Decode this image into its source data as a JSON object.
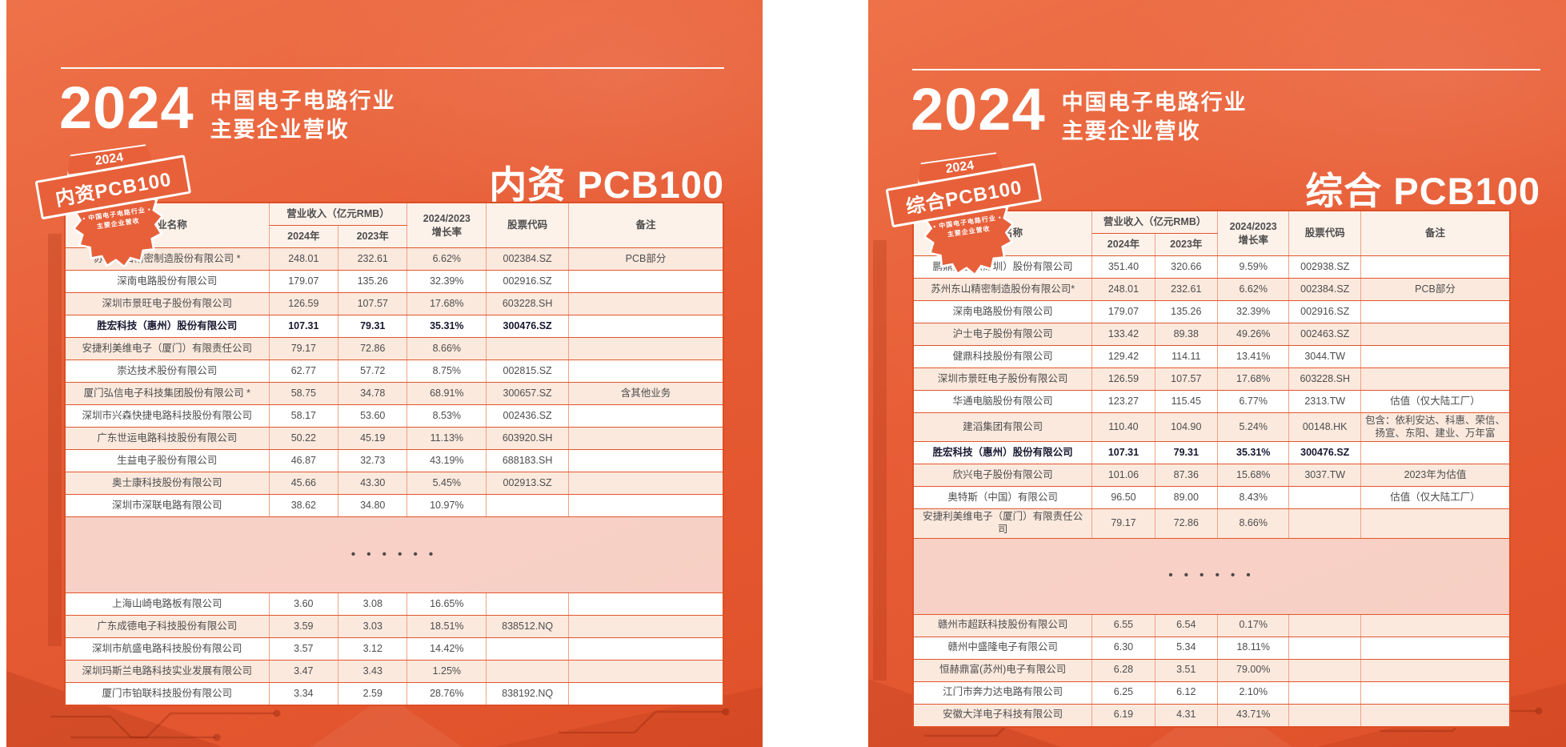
{
  "page": {
    "title_year": "2024",
    "title_line1": "中国电子电路行业",
    "title_line2": "主要企业营收"
  },
  "colors": {
    "background_orange": "#e75d36",
    "table_border": "#dd4f24",
    "row_peach": "#fbe9de",
    "highlight_text": "#17172f"
  },
  "panels": [
    {
      "heading": "内资 PCB100",
      "badge": {
        "year": "2024",
        "label": "内资PCB100",
        "sub1": "• 中国电子电路行业 •",
        "sub2": "主要企业营收"
      },
      "table": {
        "col_company": "企业名称",
        "col_revenue_group": "营业收入（亿元RMB）",
        "col_2024": "2024年",
        "col_2023": "2023年",
        "col_growth_l1": "2024/2023",
        "col_growth_l2": "增长率",
        "col_code": "股票代码",
        "col_note": "备注",
        "ellipsis": "• • •  • • •",
        "rows_top": [
          {
            "company": "苏州东山精密制造股份有限公司 *",
            "r2024": "248.01",
            "r2023": "232.61",
            "growth": "6.62%",
            "code": "002384.SZ",
            "note": "PCB部分"
          },
          {
            "company": "深南电路股份有限公司",
            "r2024": "179.07",
            "r2023": "135.26",
            "growth": "32.39%",
            "code": "002916.SZ",
            "note": ""
          },
          {
            "company": "深圳市景旺电子股份有限公司",
            "r2024": "126.59",
            "r2023": "107.57",
            "growth": "17.68%",
            "code": "603228.SH",
            "note": ""
          },
          {
            "company": "胜宏科技（惠州）股份有限公司",
            "r2024": "107.31",
            "r2023": "79.31",
            "growth": "35.31%",
            "code": "300476.SZ",
            "note": "",
            "bold": true
          },
          {
            "company": "安捷利美维电子（厦门）有限责任公司",
            "r2024": "79.17",
            "r2023": "72.86",
            "growth": "8.66%",
            "code": "",
            "note": ""
          },
          {
            "company": "崇达技术股份有限公司",
            "r2024": "62.77",
            "r2023": "57.72",
            "growth": "8.75%",
            "code": "002815.SZ",
            "note": ""
          },
          {
            "company": "厦门弘信电子科技集团股份有限公司 *",
            "r2024": "58.75",
            "r2023": "34.78",
            "growth": "68.91%",
            "code": "300657.SZ",
            "note": "含其他业务"
          },
          {
            "company": "深圳市兴森快捷电路科技股份有限公司",
            "r2024": "58.17",
            "r2023": "53.60",
            "growth": "8.53%",
            "code": "002436.SZ",
            "note": ""
          },
          {
            "company": "广东世运电路科技股份有限公司",
            "r2024": "50.22",
            "r2023": "45.19",
            "growth": "11.13%",
            "code": "603920.SH",
            "note": ""
          },
          {
            "company": "生益电子股份有限公司",
            "r2024": "46.87",
            "r2023": "32.73",
            "growth": "43.19%",
            "code": "688183.SH",
            "note": ""
          },
          {
            "company": "奥士康科技股份有限公司",
            "r2024": "45.66",
            "r2023": "43.30",
            "growth": "5.45%",
            "code": "002913.SZ",
            "note": ""
          },
          {
            "company": "深圳市深联电路有限公司",
            "r2024": "38.62",
            "r2023": "34.80",
            "growth": "10.97%",
            "code": "",
            "note": ""
          }
        ],
        "rows_bottom": [
          {
            "company": "上海山崎电路板有限公司",
            "r2024": "3.60",
            "r2023": "3.08",
            "growth": "16.65%",
            "code": "",
            "note": ""
          },
          {
            "company": "广东成德电子科技股份有限公司",
            "r2024": "3.59",
            "r2023": "3.03",
            "growth": "18.51%",
            "code": "838512.NQ",
            "note": ""
          },
          {
            "company": "深圳市航盛电路科技股份有限公司",
            "r2024": "3.57",
            "r2023": "3.12",
            "growth": "14.42%",
            "code": "",
            "note": ""
          },
          {
            "company": "深圳玛斯兰电路科技实业发展有限公司",
            "r2024": "3.47",
            "r2023": "3.43",
            "growth": "1.25%",
            "code": "",
            "note": ""
          },
          {
            "company": "厦门市铂联科技股份有限公司",
            "r2024": "3.34",
            "r2023": "2.59",
            "growth": "28.76%",
            "code": "838192.NQ",
            "note": ""
          }
        ]
      }
    },
    {
      "heading": "综合 PCB100",
      "badge": {
        "year": "2024",
        "label": "综合PCB100",
        "sub1": "• 中国电子电路行业 •",
        "sub2": "主要企业营收"
      },
      "table": {
        "col_company": "企业名称",
        "col_revenue_group": "营业收入（亿元RMB）",
        "col_2024": "2024年",
        "col_2023": "2023年",
        "col_growth_l1": "2024/2023",
        "col_growth_l2": "增长率",
        "col_code": "股票代码",
        "col_note": "备注",
        "ellipsis": "• • •  • • •",
        "rows_top": [
          {
            "company": "鹏鼎控股（深圳）股份有限公司",
            "r2024": "351.40",
            "r2023": "320.66",
            "growth": "9.59%",
            "code": "002938.SZ",
            "note": ""
          },
          {
            "company": "苏州东山精密制造股份有限公司*",
            "r2024": "248.01",
            "r2023": "232.61",
            "growth": "6.62%",
            "code": "002384.SZ",
            "note": "PCB部分"
          },
          {
            "company": "深南电路股份有限公司",
            "r2024": "179.07",
            "r2023": "135.26",
            "growth": "32.39%",
            "code": "002916.SZ",
            "note": ""
          },
          {
            "company": "沪士电子股份有限公司",
            "r2024": "133.42",
            "r2023": "89.38",
            "growth": "49.26%",
            "code": "002463.SZ",
            "note": ""
          },
          {
            "company": "健鼎科技股份有限公司",
            "r2024": "129.42",
            "r2023": "114.11",
            "growth": "13.41%",
            "code": "3044.TW",
            "note": ""
          },
          {
            "company": "深圳市景旺电子股份有限公司",
            "r2024": "126.59",
            "r2023": "107.57",
            "growth": "17.68%",
            "code": "603228.SH",
            "note": ""
          },
          {
            "company": "华通电脑股份有限公司",
            "r2024": "123.27",
            "r2023": "115.45",
            "growth": "6.77%",
            "code": "2313.TW",
            "note": "估值（仅大陆工厂）"
          },
          {
            "company": "建滔集团有限公司",
            "r2024": "110.40",
            "r2023": "104.90",
            "growth": "5.24%",
            "code": "00148.HK",
            "note": "包含：依利安达、科惠、荣信、扬宣、东阳、建业、万年富"
          },
          {
            "company": "胜宏科技（惠州）股份有限公司",
            "r2024": "107.31",
            "r2023": "79.31",
            "growth": "35.31%",
            "code": "300476.SZ",
            "note": "",
            "bold": true
          },
          {
            "company": "欣兴电子股份有限公司",
            "r2024": "101.06",
            "r2023": "87.36",
            "growth": "15.68%",
            "code": "3037.TW",
            "note": "2023年为估值"
          },
          {
            "company": "奥特斯（中国）有限公司",
            "r2024": "96.50",
            "r2023": "89.00",
            "growth": "8.43%",
            "code": "",
            "note": "估值（仅大陆工厂）"
          },
          {
            "company": "安捷利美维电子（厦门）有限责任公司",
            "r2024": "79.17",
            "r2023": "72.86",
            "growth": "8.66%",
            "code": "",
            "note": ""
          }
        ],
        "rows_bottom": [
          {
            "company": "赣州市超跃科技股份有限公司",
            "r2024": "6.55",
            "r2023": "6.54",
            "growth": "0.17%",
            "code": "",
            "note": ""
          },
          {
            "company": "赣州中盛隆电子有限公司",
            "r2024": "6.30",
            "r2023": "5.34",
            "growth": "18.11%",
            "code": "",
            "note": ""
          },
          {
            "company": "恒赫鼎富(苏州)电子有限公司",
            "r2024": "6.28",
            "r2023": "3.51",
            "growth": "79.00%",
            "code": "",
            "note": ""
          },
          {
            "company": "江门市奔力达电路有限公司",
            "r2024": "6.25",
            "r2023": "6.12",
            "growth": "2.10%",
            "code": "",
            "note": ""
          },
          {
            "company": "安徽大洋电子科技有限公司",
            "r2024": "6.19",
            "r2023": "4.31",
            "growth": "43.71%",
            "code": "",
            "note": ""
          }
        ]
      }
    }
  ]
}
